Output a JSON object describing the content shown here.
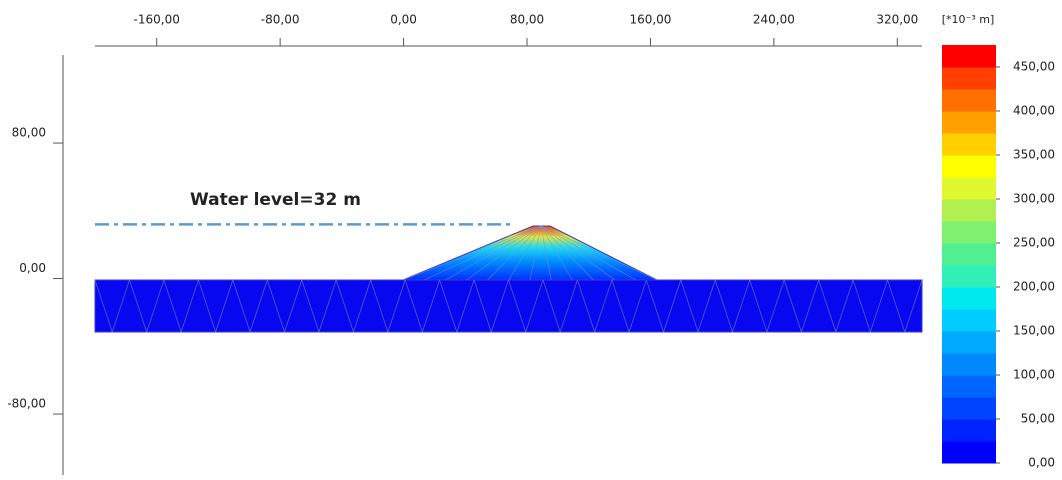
{
  "chart_data": {
    "type": "contour",
    "annotation": "Water level=32 m",
    "water_level": 32,
    "xlim": [
      -200,
      336
    ],
    "ylim": [
      -116,
      132
    ],
    "xticks": [
      {
        "value": -160,
        "label": "-160,00"
      },
      {
        "value": -80,
        "label": "-80,00"
      },
      {
        "value": 0,
        "label": "0,00"
      },
      {
        "value": 80,
        "label": "80,00"
      },
      {
        "value": 160,
        "label": "160,00"
      },
      {
        "value": 240,
        "label": "240,00"
      },
      {
        "value": 320,
        "label": "320,00"
      }
    ],
    "yticks": [
      {
        "value": -80,
        "label": "-80,00"
      },
      {
        "value": 0,
        "label": "0,00"
      },
      {
        "value": 80,
        "label": "80,00"
      }
    ],
    "colorbar_label": "[*10⁻³ m]",
    "clim": [
      0,
      475
    ],
    "cticks": [
      {
        "value": 0,
        "label": "0,00"
      },
      {
        "value": 50,
        "label": "50,00"
      },
      {
        "value": 100,
        "label": "100,00"
      },
      {
        "value": 150,
        "label": "150,00"
      },
      {
        "value": 200,
        "label": "200,00"
      },
      {
        "value": 250,
        "label": "250,00"
      },
      {
        "value": 300,
        "label": "300,00"
      },
      {
        "value": 350,
        "label": "350,00"
      },
      {
        "value": 400,
        "label": "400,00"
      },
      {
        "value": 450,
        "label": "450,00"
      }
    ],
    "colors": [
      "#0000ff",
      "#0022ff",
      "#0044ff",
      "#0066ff",
      "#0088ff",
      "#00aaff",
      "#00ccff",
      "#00e8f0",
      "#30f0b8",
      "#50f090",
      "#80f070",
      "#b0f050",
      "#e0f830",
      "#ffff00",
      "#ffd000",
      "#ffa000",
      "#ff7000",
      "#ff4000",
      "#ff0000"
    ]
  }
}
